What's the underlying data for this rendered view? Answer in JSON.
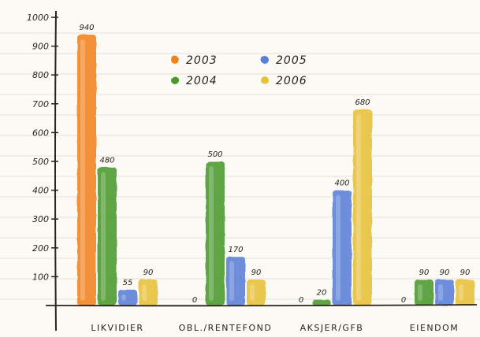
{
  "chart_data": {
    "type": "bar",
    "title": "",
    "xlabel": "",
    "ylabel": "",
    "ylim": [
      0,
      1000
    ],
    "yticks": [
      100,
      200,
      300,
      400,
      500,
      600,
      700,
      800,
      900,
      1000
    ],
    "grid": true,
    "legend_position": "top-center",
    "categories": [
      "LIKVIDIER",
      "OBL./RENTEFOND",
      "AKSJER/GFB",
      "EIENDOM"
    ],
    "series": [
      {
        "name": "2003",
        "color": "#f0821c",
        "values": [
          940,
          0,
          0,
          0
        ],
        "labels": [
          "940",
          "0",
          "0",
          "0"
        ]
      },
      {
        "name": "2004",
        "color": "#4a9a2c",
        "values": [
          480,
          500,
          20,
          90
        ],
        "labels": [
          "480",
          "500",
          "20",
          "90"
        ]
      },
      {
        "name": "2005",
        "color": "#5b7fd8",
        "values": [
          55,
          170,
          400,
          90
        ],
        "labels": [
          "55",
          "170",
          "400",
          "90"
        ]
      },
      {
        "name": "2006",
        "color": "#e8c13a",
        "values": [
          90,
          90,
          680,
          90
        ],
        "labels": [
          "90",
          "90",
          "680",
          "90"
        ]
      }
    ]
  }
}
